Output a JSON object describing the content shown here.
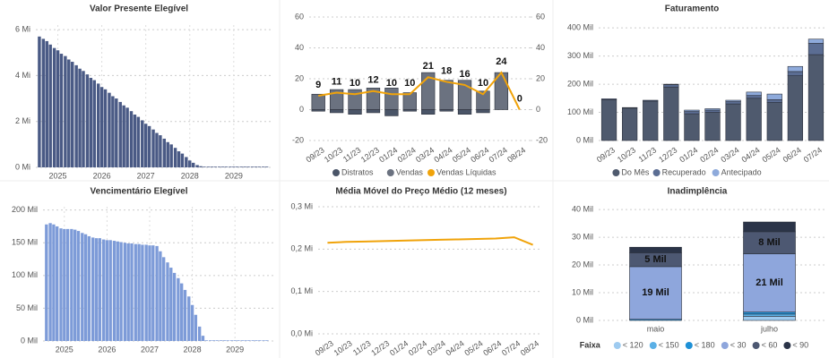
{
  "chart_data": [
    {
      "type": "bar",
      "title": "Valor Presente Elegível",
      "color": "#4a5a85",
      "grid": true,
      "x": [
        2024.58,
        2024.67,
        2024.75,
        2024.83,
        2024.92,
        2025.0,
        2025.08,
        2025.17,
        2025.25,
        2025.33,
        2025.42,
        2025.5,
        2025.58,
        2025.67,
        2025.75,
        2025.83,
        2025.92,
        2026.0,
        2026.08,
        2026.17,
        2026.25,
        2026.33,
        2026.42,
        2026.5,
        2026.58,
        2026.67,
        2026.75,
        2026.83,
        2026.92,
        2027.0,
        2027.08,
        2027.17,
        2027.25,
        2027.33,
        2027.42,
        2027.5,
        2027.58,
        2027.67,
        2027.75,
        2027.83,
        2027.92,
        2028.0,
        2028.08,
        2028.17,
        2028.25,
        2028.33,
        2028.42,
        2028.5,
        2028.58,
        2028.67,
        2028.75,
        2028.83,
        2028.92,
        2029.0,
        2029.08,
        2029.17,
        2029.25,
        2029.33,
        2029.42,
        2029.5,
        2029.58,
        2029.67,
        2029.75
      ],
      "values": [
        5.7,
        5.6,
        5.5,
        5.35,
        5.2,
        5.1,
        4.95,
        4.85,
        4.7,
        4.6,
        4.45,
        4.3,
        4.2,
        4.05,
        3.9,
        3.8,
        3.65,
        3.5,
        3.4,
        3.25,
        3.1,
        3.0,
        2.85,
        2.7,
        2.6,
        2.45,
        2.3,
        2.2,
        2.05,
        1.9,
        1.8,
        1.65,
        1.5,
        1.4,
        1.25,
        1.1,
        1.0,
        0.85,
        0.7,
        0.6,
        0.45,
        0.3,
        0.2,
        0.1,
        0.05,
        0.03,
        0.03,
        0.03,
        0.03,
        0.03,
        0.03,
        0.03,
        0.03,
        0.03,
        0.03,
        0.03,
        0.03,
        0.03,
        0.03,
        0.03,
        0.03,
        0.03,
        0.03
      ],
      "xlim": [
        2024.5,
        2029.9
      ],
      "xticks": [
        2025,
        2026,
        2027,
        2028,
        2029
      ],
      "ylim": [
        0,
        6.2
      ],
      "yticks": [
        {
          "value": 0,
          "label": "0 Mi"
        },
        {
          "value": 2,
          "label": "2 Mi"
        },
        {
          "value": 4,
          "label": "4 Mi"
        },
        {
          "value": 6,
          "label": "6 Mi"
        }
      ]
    },
    {
      "type": "bar",
      "title": "Vencimentário Elegível",
      "color": "#7d9bd8",
      "grid": true,
      "x": [
        2024.58,
        2024.67,
        2024.75,
        2024.83,
        2024.92,
        2025.0,
        2025.08,
        2025.17,
        2025.25,
        2025.33,
        2025.42,
        2025.5,
        2025.58,
        2025.67,
        2025.75,
        2025.83,
        2025.92,
        2026.0,
        2026.08,
        2026.17,
        2026.25,
        2026.33,
        2026.42,
        2026.5,
        2026.58,
        2026.67,
        2026.75,
        2026.83,
        2026.92,
        2027.0,
        2027.08,
        2027.17,
        2027.25,
        2027.33,
        2027.42,
        2027.5,
        2027.58,
        2027.67,
        2027.75,
        2027.83,
        2027.92,
        2028.0,
        2028.08,
        2028.17,
        2028.25,
        2028.33,
        2028.42,
        2028.5,
        2028.58,
        2028.67,
        2028.75,
        2028.83,
        2028.92,
        2029.0,
        2029.08,
        2029.17,
        2029.25,
        2029.33,
        2029.42,
        2029.5,
        2029.58,
        2029.67,
        2029.75
      ],
      "values": [
        178,
        180,
        178,
        175,
        172,
        171,
        171,
        171,
        170,
        168,
        165,
        163,
        160,
        158,
        157,
        157,
        155,
        154,
        154,
        153,
        152,
        151,
        150,
        149,
        149,
        148,
        148,
        147,
        147,
        146,
        146,
        145,
        137,
        128,
        120,
        112,
        104,
        96,
        88,
        78,
        68,
        55,
        40,
        22,
        8,
        1,
        1,
        1,
        1,
        1,
        1,
        1,
        1,
        1,
        1,
        1,
        1,
        1,
        1,
        1,
        1,
        1,
        1
      ],
      "xlim": [
        2024.5,
        2029.9
      ],
      "xticks": [
        2025,
        2026,
        2027,
        2028,
        2029
      ],
      "ylim": [
        0,
        205
      ],
      "yticks": [
        {
          "value": 0,
          "label": "0 Mil"
        },
        {
          "value": 50,
          "label": "50 Mil"
        },
        {
          "value": 100,
          "label": "100 Mil"
        },
        {
          "value": 150,
          "label": "150 Mil"
        },
        {
          "value": 200,
          "label": "200 Mil"
        }
      ]
    },
    {
      "type": "combo",
      "grid": true,
      "legend": "bottom",
      "data_labels": true,
      "categories": [
        "09/23",
        "10/23",
        "11/23",
        "12/23",
        "01/24",
        "02/24",
        "03/24",
        "04/24",
        "05/24",
        "06/24",
        "07/24",
        "08/24"
      ],
      "series": [
        {
          "name": "Distratos",
          "color": "#4a5568",
          "type": "bar",
          "values": [
            -1,
            -2,
            -3,
            -2,
            -4,
            -1,
            -3,
            -1,
            -3,
            -2,
            0,
            0
          ]
        },
        {
          "name": "Vendas",
          "color": "#6b7280",
          "type": "bar",
          "values": [
            10,
            13,
            13,
            14,
            14,
            11,
            24,
            19,
            19,
            12,
            24,
            0
          ]
        },
        {
          "name": "Vendas Líquidas",
          "color": "#f0a30a",
          "type": "line",
          "axis": "y2",
          "values": [
            9,
            11,
            10,
            12,
            10,
            10,
            21,
            18,
            16,
            10,
            24,
            0
          ]
        }
      ],
      "ylim": [
        -20,
        60
      ],
      "yticks": [
        -20,
        0,
        20,
        40,
        60
      ],
      "y2lim": [
        -20,
        60
      ],
      "y2ticks": [
        -20,
        0,
        20,
        40,
        60
      ]
    },
    {
      "type": "stacked",
      "title": "Faturamento",
      "grid": true,
      "legend": "bottom",
      "categories": [
        "09/23",
        "10/23",
        "11/23",
        "12/23",
        "01/24",
        "02/24",
        "03/24",
        "04/24",
        "05/24",
        "06/24",
        "07/24"
      ],
      "series": [
        {
          "name": "Do Mês",
          "color": "#4f5a6e",
          "values": [
            145,
            115,
            140,
            190,
            95,
            100,
            130,
            150,
            135,
            230,
            305
          ]
        },
        {
          "name": "Recuperado",
          "color": "#5b6d93",
          "values": [
            3,
            2,
            3,
            8,
            8,
            8,
            8,
            10,
            10,
            15,
            40
          ]
        },
        {
          "name": "Antecipado",
          "color": "#8eaadb",
          "values": [
            0,
            0,
            0,
            2,
            5,
            5,
            5,
            12,
            20,
            18,
            15
          ]
        }
      ],
      "ylim": [
        0,
        410
      ],
      "yticks": [
        {
          "value": 0,
          "label": "0 Mil"
        },
        {
          "value": 100,
          "label": "100 Mil"
        },
        {
          "value": 200,
          "label": "200 Mil"
        },
        {
          "value": 300,
          "label": "300 Mil"
        },
        {
          "value": 400,
          "label": "400 Mil"
        }
      ]
    },
    {
      "type": "line",
      "title": "Média Móvel do Preço Médio (12 meses)",
      "color": "#f0a30a",
      "grid": true,
      "categories": [
        "09/23",
        "10/23",
        "11/23",
        "12/23",
        "01/24",
        "02/24",
        "03/24",
        "04/24",
        "05/24",
        "06/24",
        "07/24",
        "08/24"
      ],
      "values": [
        0.215,
        0.217,
        0.218,
        0.219,
        0.22,
        0.221,
        0.222,
        0.223,
        0.224,
        0.225,
        0.228,
        0.21
      ],
      "ylim": [
        0,
        0.3
      ],
      "yticks": [
        {
          "value": 0,
          "label": "0,0 Mi"
        },
        {
          "value": 0.1,
          "label": "0,1 Mi"
        },
        {
          "value": 0.2,
          "label": "0,2 Mi"
        },
        {
          "value": 0.3,
          "label": "0,3 Mi"
        }
      ]
    },
    {
      "type": "stacked",
      "title": "Inadimplência",
      "grid": true,
      "legend": "bottom",
      "legend_title": "Faixa",
      "categories": [
        "maio",
        "julho"
      ],
      "series": [
        {
          "name": "< 120",
          "color": "#9ecbf0",
          "values": [
            0,
            1.5
          ]
        },
        {
          "name": "< 150",
          "color": "#5bb0e6",
          "values": [
            0,
            0.8
          ]
        },
        {
          "name": "< 180",
          "color": "#1e90d6",
          "values": [
            0.4,
            0.7
          ]
        },
        {
          "name": "< 30",
          "color": "#8ea6dc",
          "values": [
            19,
            21
          ],
          "value_labels": [
            "19 Mil",
            "21 Mil"
          ]
        },
        {
          "name": "< 60",
          "color": "#4d5872",
          "values": [
            5,
            8
          ],
          "value_labels": [
            "5 Mil",
            "8 Mil"
          ]
        },
        {
          "name": "< 90",
          "color": "#2b3448",
          "values": [
            2,
            3.5
          ]
        }
      ],
      "ylim": [
        0,
        41
      ],
      "yticks": [
        {
          "value": 0,
          "label": "0 Mil"
        },
        {
          "value": 10,
          "label": "10 Mil"
        },
        {
          "value": 20,
          "label": "20 Mil"
        },
        {
          "value": 30,
          "label": "30 Mil"
        },
        {
          "value": 40,
          "label": "40 Mil"
        }
      ]
    }
  ]
}
